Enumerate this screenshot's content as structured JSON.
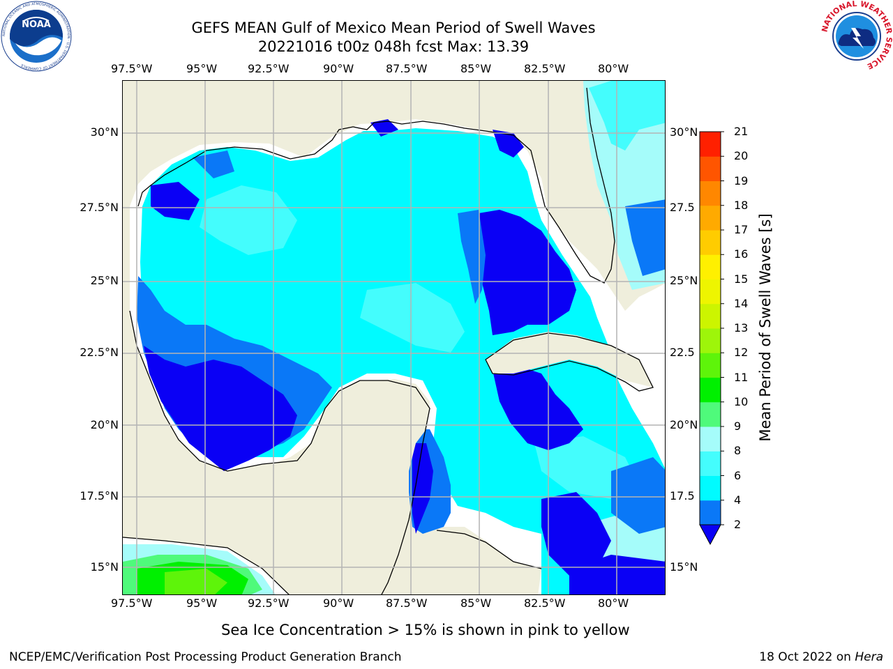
{
  "header": {
    "title_line1": "GEFS MEAN Gulf of Mexico Mean Period of Swell Waves",
    "title_line2": "20221016 t00z 048h fcst   Max: 13.39"
  },
  "logos": {
    "left": {
      "name": "noaa-logo",
      "text": "NOAA",
      "ring_text": "NATIONAL OCEANIC AND ATMOSPHERIC ADMINISTRATION · U.S. DEPARTMENT OF COMMERCE"
    },
    "right": {
      "name": "nws-logo",
      "ring_text": "NATIONAL WEATHER SERVICE"
    }
  },
  "map": {
    "lon_ticks": [
      "97.5°W",
      "95°W",
      "92.5°W",
      "90°W",
      "87.5°W",
      "85°W",
      "82.5°W",
      "80°W"
    ],
    "lat_ticks_left": [
      "30°N",
      "27.5°N",
      "25°N",
      "22.5°N",
      "20°N",
      "17.5°N",
      "15°N"
    ],
    "lat_ticks_right": [
      "30°N",
      "27.5",
      "25°N",
      "22.5",
      "20°N",
      "17.5",
      "15°N"
    ],
    "land_color": "#efeedc",
    "grid_color": "#b4b4b4"
  },
  "colorbar": {
    "label": "Mean Period of Swell Waves [s]",
    "levels": [
      "2",
      "4",
      "6",
      "8",
      "9",
      "10",
      "11",
      "12",
      "13",
      "14",
      "15",
      "16",
      "17",
      "18",
      "19",
      "20",
      "21"
    ],
    "colors": [
      "#0a00f5",
      "#0a78f7",
      "#00fbff",
      "#44fdfd",
      "#a5fcfa",
      "#4ffa7b",
      "#00f000",
      "#5ef40a",
      "#9ef50a",
      "#ccf500",
      "#eef500",
      "#fff000",
      "#ffcc00",
      "#ffaa00",
      "#ff8700",
      "#ff5500",
      "#ff2000",
      "#ff0000"
    ]
  },
  "note": "Sea Ice Concentration > 15% is shown in pink to yellow",
  "footer": {
    "left": "NCEP/EMC/Verification Post Processing Product Generation Branch",
    "right_date": "18 Oct 2022 on ",
    "right_host": "Hera"
  }
}
